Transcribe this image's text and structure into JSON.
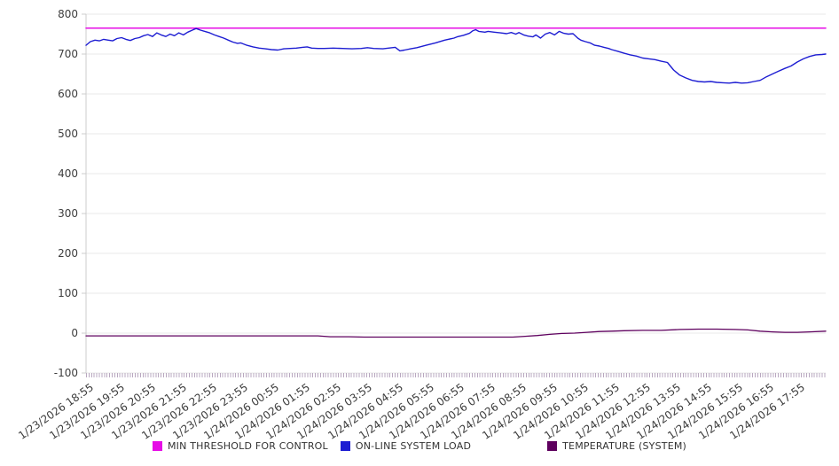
{
  "chart_data": {
    "type": "line",
    "title": "",
    "legend_position": "bottom",
    "grid": "horizontal",
    "y_axis": {
      "min": -100,
      "max": 800,
      "tick_step": 100,
      "ticks": [
        800,
        700,
        600,
        500,
        400,
        300,
        200,
        100,
        0,
        -100
      ]
    },
    "x_axis": {
      "range_hours": 23.92,
      "label_interval": "1 hour",
      "minor_tick_interval": "5 min",
      "labels": [
        "1/23/2026 18:55",
        "1/23/2026 19:55",
        "1/23/2026 20:55",
        "1/23/2026 21:55",
        "1/23/2026 22:55",
        "1/23/2026 23:55",
        "1/24/2026 00:55",
        "1/24/2026 01:55",
        "1/24/2026 02:55",
        "1/24/2026 03:55",
        "1/24/2026 04:55",
        "1/24/2026 05:55",
        "1/24/2026 06:55",
        "1/24/2026 07:55",
        "1/24/2026 08:55",
        "1/24/2026 09:55",
        "1/24/2026 10:55",
        "1/24/2026 11:55",
        "1/24/2026 12:55",
        "1/24/2026 13:55",
        "1/24/2026 14:55",
        "1/24/2026 15:55",
        "1/24/2026 16:55",
        "1/24/2026 17:55"
      ]
    },
    "series": [
      {
        "name": "MIN THRESHOLD FOR CONTROL",
        "color": "#e60ce6",
        "width": 1.5,
        "points": [
          [
            0,
            765
          ],
          [
            23.92,
            765
          ]
        ]
      },
      {
        "name": "ON-LINE SYSTEM LOAD",
        "color": "#1d1dd2",
        "width": 1.4,
        "points": [
          [
            0.0,
            722
          ],
          [
            0.14,
            731
          ],
          [
            0.29,
            735
          ],
          [
            0.43,
            733
          ],
          [
            0.57,
            737
          ],
          [
            0.72,
            735
          ],
          [
            0.86,
            733
          ],
          [
            1.0,
            739
          ],
          [
            1.15,
            741
          ],
          [
            1.29,
            737
          ],
          [
            1.43,
            734
          ],
          [
            1.58,
            739
          ],
          [
            1.72,
            741
          ],
          [
            1.86,
            746
          ],
          [
            2.0,
            749
          ],
          [
            2.15,
            744
          ],
          [
            2.29,
            753
          ],
          [
            2.43,
            748
          ],
          [
            2.58,
            744
          ],
          [
            2.72,
            750
          ],
          [
            2.86,
            746
          ],
          [
            3.0,
            753
          ],
          [
            3.15,
            748
          ],
          [
            3.29,
            755
          ],
          [
            3.44,
            760
          ],
          [
            3.56,
            764
          ],
          [
            3.7,
            760
          ],
          [
            3.84,
            757
          ],
          [
            4.0,
            753
          ],
          [
            4.15,
            748
          ],
          [
            4.3,
            744
          ],
          [
            4.45,
            740
          ],
          [
            4.6,
            735
          ],
          [
            4.75,
            730
          ],
          [
            4.9,
            727
          ],
          [
            5.0,
            728
          ],
          [
            5.2,
            722
          ],
          [
            5.4,
            718
          ],
          [
            5.6,
            715
          ],
          [
            5.8,
            713
          ],
          [
            6.0,
            711
          ],
          [
            6.2,
            710
          ],
          [
            6.4,
            713
          ],
          [
            6.6,
            714
          ],
          [
            6.8,
            715
          ],
          [
            7.0,
            717
          ],
          [
            7.15,
            718
          ],
          [
            7.3,
            715
          ],
          [
            7.5,
            714
          ],
          [
            7.7,
            714
          ],
          [
            8.0,
            715
          ],
          [
            8.3,
            714
          ],
          [
            8.6,
            713
          ],
          [
            8.9,
            714
          ],
          [
            9.1,
            716
          ],
          [
            9.3,
            714
          ],
          [
            9.6,
            713
          ],
          [
            9.9,
            716
          ],
          [
            10.0,
            717
          ],
          [
            10.15,
            708
          ],
          [
            10.3,
            710
          ],
          [
            10.5,
            713
          ],
          [
            10.7,
            716
          ],
          [
            11.0,
            722
          ],
          [
            11.3,
            728
          ],
          [
            11.6,
            735
          ],
          [
            11.9,
            740
          ],
          [
            12.0,
            743
          ],
          [
            12.2,
            747
          ],
          [
            12.4,
            752
          ],
          [
            12.5,
            758
          ],
          [
            12.6,
            761
          ],
          [
            12.7,
            757
          ],
          [
            12.9,
            755
          ],
          [
            13.0,
            757
          ],
          [
            13.2,
            755
          ],
          [
            13.4,
            753
          ],
          [
            13.6,
            751
          ],
          [
            13.75,
            754
          ],
          [
            13.9,
            750
          ],
          [
            14.0,
            754
          ],
          [
            14.15,
            748
          ],
          [
            14.3,
            745
          ],
          [
            14.45,
            743
          ],
          [
            14.55,
            748
          ],
          [
            14.7,
            740
          ],
          [
            14.85,
            750
          ],
          [
            15.0,
            754
          ],
          [
            15.15,
            748
          ],
          [
            15.3,
            757
          ],
          [
            15.45,
            752
          ],
          [
            15.6,
            750
          ],
          [
            15.75,
            751
          ],
          [
            15.9,
            740
          ],
          [
            16.0,
            735
          ],
          [
            16.15,
            731
          ],
          [
            16.3,
            728
          ],
          [
            16.45,
            722
          ],
          [
            16.6,
            720
          ],
          [
            16.75,
            717
          ],
          [
            16.9,
            714
          ],
          [
            17.0,
            711
          ],
          [
            17.2,
            707
          ],
          [
            17.4,
            702
          ],
          [
            17.6,
            698
          ],
          [
            17.8,
            695
          ],
          [
            18.0,
            690
          ],
          [
            18.2,
            688
          ],
          [
            18.4,
            686
          ],
          [
            18.6,
            682
          ],
          [
            18.8,
            679
          ],
          [
            19.0,
            660
          ],
          [
            19.2,
            647
          ],
          [
            19.4,
            640
          ],
          [
            19.6,
            634
          ],
          [
            19.8,
            631
          ],
          [
            20.0,
            630
          ],
          [
            20.2,
            631
          ],
          [
            20.4,
            629
          ],
          [
            20.6,
            628
          ],
          [
            20.8,
            627
          ],
          [
            21.0,
            629
          ],
          [
            21.2,
            627
          ],
          [
            21.4,
            628
          ],
          [
            21.6,
            631
          ],
          [
            21.8,
            634
          ],
          [
            22.0,
            643
          ],
          [
            22.2,
            650
          ],
          [
            22.4,
            657
          ],
          [
            22.6,
            664
          ],
          [
            22.8,
            670
          ],
          [
            23.0,
            680
          ],
          [
            23.2,
            688
          ],
          [
            23.4,
            694
          ],
          [
            23.6,
            698
          ],
          [
            23.8,
            699
          ],
          [
            23.92,
            700
          ]
        ]
      },
      {
        "name": "TEMPERATURE (SYSTEM)",
        "color": "#5e005e",
        "width": 1.3,
        "points": [
          [
            0,
            -7
          ],
          [
            1,
            -7
          ],
          [
            2,
            -7
          ],
          [
            3,
            -7
          ],
          [
            4,
            -7
          ],
          [
            5,
            -7
          ],
          [
            6,
            -7
          ],
          [
            7,
            -7
          ],
          [
            7.5,
            -7
          ],
          [
            7.9,
            -9
          ],
          [
            8.5,
            -9
          ],
          [
            9,
            -10
          ],
          [
            10,
            -10
          ],
          [
            11,
            -10
          ],
          [
            12,
            -10
          ],
          [
            13,
            -10
          ],
          [
            13.8,
            -10
          ],
          [
            14.2,
            -8
          ],
          [
            14.6,
            -6
          ],
          [
            15.0,
            -3
          ],
          [
            15.4,
            -1
          ],
          [
            15.8,
            0
          ],
          [
            16.2,
            2
          ],
          [
            16.6,
            4
          ],
          [
            17.0,
            5
          ],
          [
            17.4,
            6
          ],
          [
            18.0,
            7
          ],
          [
            18.6,
            7
          ],
          [
            19.2,
            9
          ],
          [
            19.8,
            10
          ],
          [
            20.4,
            10
          ],
          [
            21.0,
            9
          ],
          [
            21.4,
            8
          ],
          [
            21.8,
            5
          ],
          [
            22.2,
            3
          ],
          [
            22.6,
            2
          ],
          [
            23.0,
            2
          ],
          [
            23.4,
            3
          ],
          [
            23.92,
            5
          ]
        ]
      }
    ]
  },
  "colors": {
    "background": "#ffffff",
    "gridline": "#e8e8e8",
    "axis_line": "#cccccc",
    "axis_text": "#3d3d3d",
    "minor_tick": "#b9a8c0"
  }
}
